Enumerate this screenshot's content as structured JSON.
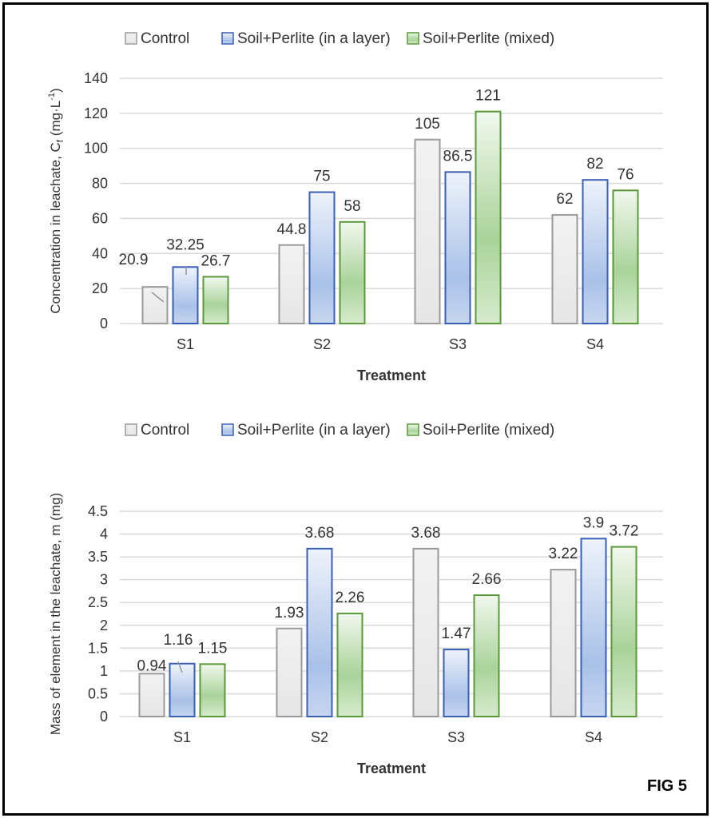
{
  "figure_label": "FIG 5",
  "colors": {
    "control": "#9a9a9a",
    "layer": "#3a5fb5",
    "mixed": "#5a9a3a",
    "grid": "#d9d9d9"
  },
  "chart_data": [
    {
      "type": "bar",
      "legend": [
        "Control",
        "Soil+Perlite (in a layer)",
        "Soil+Perlite (mixed)"
      ],
      "legend_position": "top",
      "categories": [
        "S1",
        "S2",
        "S3",
        "S4"
      ],
      "series": [
        {
          "name": "Control",
          "values": [
            20.9,
            44.8,
            105,
            62
          ],
          "labels": [
            "20.9",
            "44.8",
            "105",
            "62"
          ]
        },
        {
          "name": "Soil+Perlite (in a layer)",
          "values": [
            32.25,
            75,
            86.5,
            82
          ],
          "labels": [
            "32.25",
            "75",
            "86.5",
            "82"
          ]
        },
        {
          "name": "Soil+Perlite (mixed)",
          "values": [
            26.7,
            58,
            121,
            76
          ],
          "labels": [
            "26.7",
            "58",
            "121",
            "76"
          ]
        }
      ],
      "xlabel": "Treatment",
      "ylabel": {
        "main": "Concentration in leachate, C",
        "sub": "f",
        "unit": " (mg·L",
        "sup": "-1",
        "end": ")"
      },
      "ylim": [
        0,
        140
      ],
      "yticks": [
        "0",
        "20",
        "40",
        "60",
        "80",
        "100",
        "120",
        "140"
      ],
      "ytick_values": [
        0,
        20,
        40,
        60,
        80,
        100,
        120,
        140
      ],
      "grid": true
    },
    {
      "type": "bar",
      "legend": [
        "Control",
        "Soil+Perlite (in a layer)",
        "Soil+Perlite (mixed)"
      ],
      "legend_position": "top",
      "categories": [
        "S1",
        "S2",
        "S3",
        "S4"
      ],
      "series": [
        {
          "name": "Control",
          "values": [
            0.94,
            1.93,
            3.68,
            3.22
          ],
          "labels": [
            "0.94",
            "1.93",
            "3.68",
            "3.22"
          ]
        },
        {
          "name": "Soil+Perlite (in a layer)",
          "values": [
            1.16,
            3.68,
            1.47,
            3.9
          ],
          "labels": [
            "1.16",
            "3.68",
            "1.47",
            "3.9"
          ]
        },
        {
          "name": "Soil+Perlite (mixed)",
          "values": [
            1.15,
            2.26,
            2.66,
            3.72
          ],
          "labels": [
            "1.15",
            "2.26",
            "2.66",
            "3.72"
          ]
        }
      ],
      "xlabel": "Treatment",
      "ylabel": {
        "main": "Mass of element in the leachate, m (mg)"
      },
      "ylim": [
        0,
        4.5
      ],
      "yticks": [
        "0",
        "0.5",
        "1",
        "1.5",
        "2",
        "2.5",
        "3",
        "3.5",
        "4",
        "4.5"
      ],
      "ytick_values": [
        0,
        0.5,
        1,
        1.5,
        2,
        2.5,
        3,
        3.5,
        4,
        4.5
      ],
      "grid": true
    }
  ]
}
